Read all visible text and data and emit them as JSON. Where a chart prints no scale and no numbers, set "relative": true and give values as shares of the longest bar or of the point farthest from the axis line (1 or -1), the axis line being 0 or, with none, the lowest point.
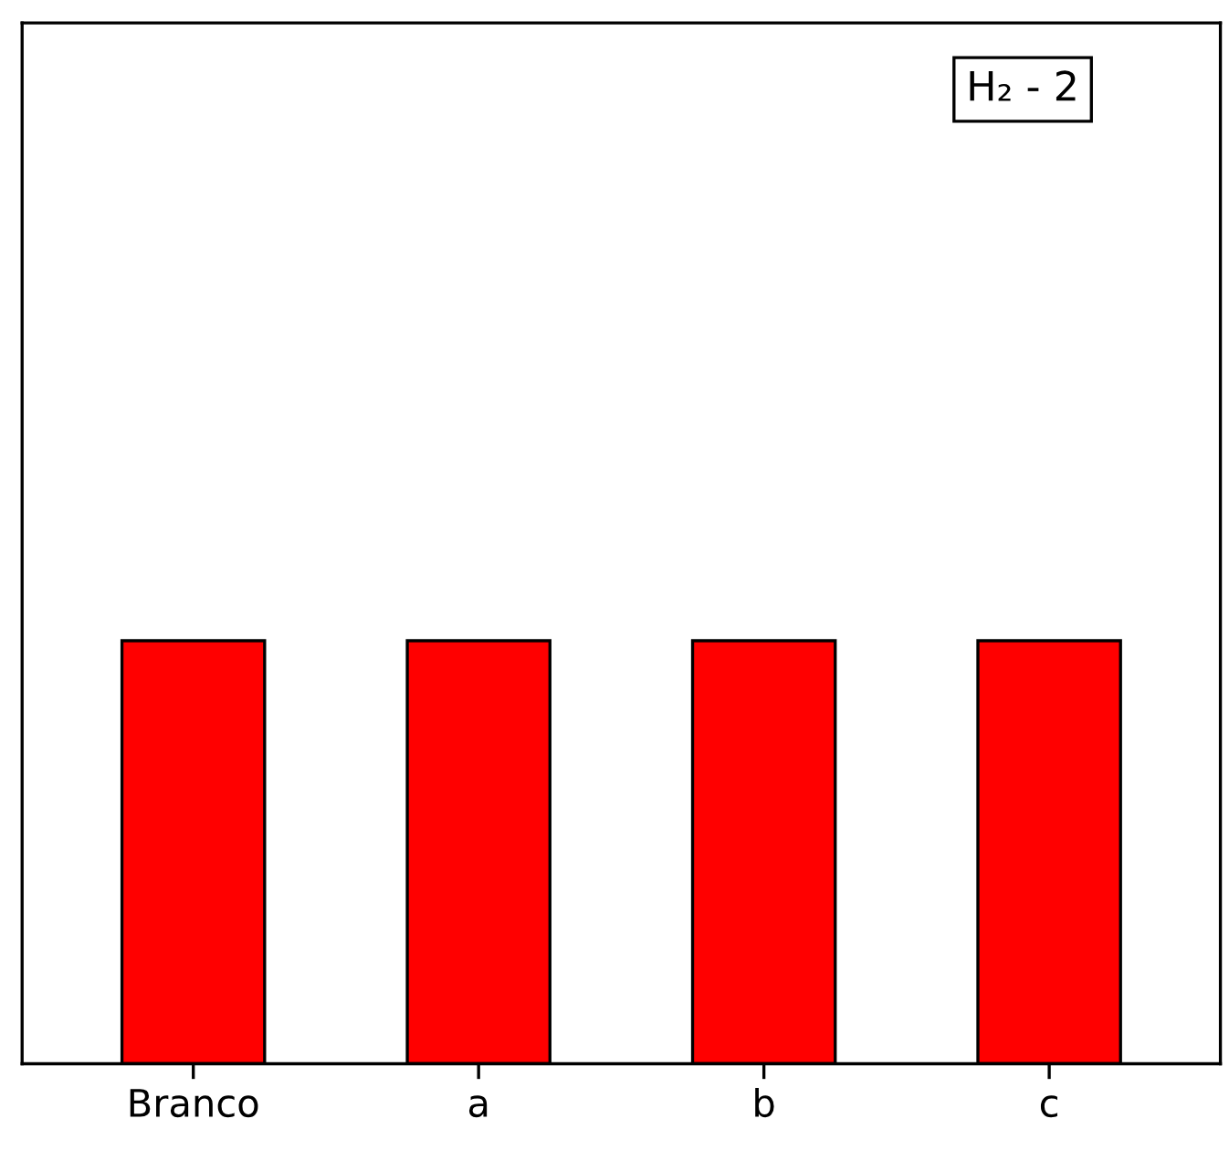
{
  "chart_data": {
    "type": "bar",
    "relative": true,
    "categories": [
      "Branco",
      "a",
      "b",
      "c"
    ],
    "values": [
      1,
      1,
      1,
      1
    ],
    "color": "#ff0000",
    "annotations": [
      "H₂ - 2"
    ]
  }
}
